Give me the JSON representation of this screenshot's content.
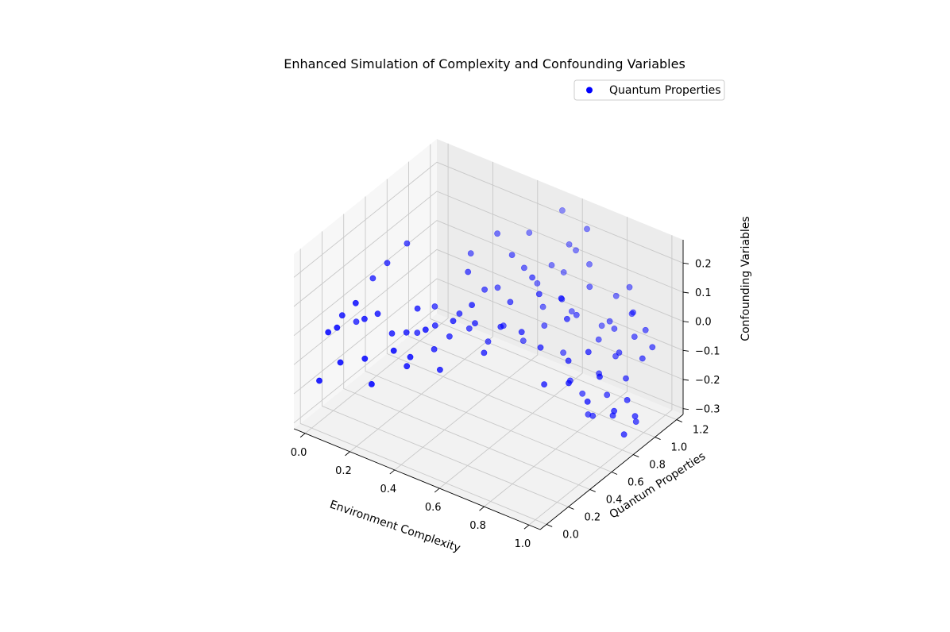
{
  "chart_data": {
    "type": "scatter",
    "title": "Enhanced Simulation of Complexity and Confounding Variables",
    "xlabel": "Environment Complexity",
    "ylabel": "Quantum Properties",
    "zlabel": "Confounding Variables",
    "x_ticks": [
      "0.0",
      "0.2",
      "0.4",
      "0.6",
      "0.8",
      "1.0"
    ],
    "y_ticks": [
      "0.0",
      "0.2",
      "0.4",
      "0.6",
      "0.8",
      "1.0",
      "1.2"
    ],
    "z_ticks": [
      "−0.3",
      "−0.2",
      "−0.1",
      "0.0",
      "0.1",
      "0.2"
    ],
    "xlim": [
      -0.05,
      1.05
    ],
    "ylim": [
      -0.06,
      1.26
    ],
    "zlim": [
      -0.32,
      0.28
    ],
    "grid": true,
    "legend_position": "top-right",
    "series": [
      {
        "name": "Quantum Properties",
        "color": "#0000ff",
        "marker": "circle",
        "points": [
          {
            "x": 0.02,
            "y": 0.03,
            "z": -0.16
          },
          {
            "x": 0.05,
            "y": 0.05,
            "z": 0.01
          },
          {
            "x": 0.07,
            "y": 0.09,
            "z": 0.02
          },
          {
            "x": 0.04,
            "y": 0.2,
            "z": 0.02
          },
          {
            "x": 0.09,
            "y": 0.08,
            "z": -0.09
          },
          {
            "x": 0.11,
            "y": 0.18,
            "z": 0.09
          },
          {
            "x": 0.13,
            "y": 0.22,
            "z": 0.03
          },
          {
            "x": 0.15,
            "y": 0.3,
            "z": 0.03
          },
          {
            "x": 0.17,
            "y": 0.14,
            "z": -0.07
          },
          {
            "x": 0.19,
            "y": 0.35,
            "z": -0.04
          },
          {
            "x": 0.22,
            "y": 0.1,
            "z": -0.13
          },
          {
            "x": 0.24,
            "y": 0.38,
            "z": -0.03
          },
          {
            "x": 0.27,
            "y": 0.42,
            "z": 0.05
          },
          {
            "x": 0.29,
            "y": 0.28,
            "z": -0.1
          },
          {
            "x": 0.31,
            "y": 0.5,
            "z": -0.02
          },
          {
            "x": 0.33,
            "y": 0.45,
            "z": -0.08
          },
          {
            "x": 0.35,
            "y": 0.55,
            "z": -0.06
          },
          {
            "x": 0.37,
            "y": 0.6,
            "z": 0.01
          },
          {
            "x": 0.36,
            "y": 0.7,
            "z": 0.12
          },
          {
            "x": 0.39,
            "y": 0.65,
            "z": -0.05
          },
          {
            "x": 0.41,
            "y": 0.75,
            "z": 0.06
          },
          {
            "x": 0.42,
            "y": 0.85,
            "z": 0.04
          },
          {
            "x": 0.44,
            "y": 0.72,
            "z": -0.1
          },
          {
            "x": 0.46,
            "y": 0.9,
            "z": 0.15
          },
          {
            "x": 0.47,
            "y": 0.8,
            "z": -0.06
          },
          {
            "x": 0.49,
            "y": 0.95,
            "z": 0.1
          },
          {
            "x": 0.5,
            "y": 1.05,
            "z": 0.02
          },
          {
            "x": 0.52,
            "y": 0.88,
            "z": -0.12
          },
          {
            "x": 0.54,
            "y": 1.1,
            "z": 0.08
          },
          {
            "x": 0.55,
            "y": 1.0,
            "z": -0.03
          },
          {
            "x": 0.57,
            "y": 1.15,
            "z": 0.05
          },
          {
            "x": 0.58,
            "y": 0.95,
            "z": -0.07
          },
          {
            "x": 0.6,
            "y": 1.2,
            "z": 0.12
          },
          {
            "x": 0.61,
            "y": 1.05,
            "z": 0.0
          },
          {
            "x": 0.63,
            "y": 1.1,
            "z": -0.05
          },
          {
            "x": 0.65,
            "y": 0.98,
            "z": -0.15
          },
          {
            "x": 0.67,
            "y": 1.18,
            "z": 0.1
          },
          {
            "x": 0.69,
            "y": 1.02,
            "z": -0.02
          },
          {
            "x": 0.7,
            "y": 1.12,
            "z": 0.05
          },
          {
            "x": 0.72,
            "y": 0.9,
            "z": -0.2
          },
          {
            "x": 0.74,
            "y": 1.15,
            "z": -0.08
          },
          {
            "x": 0.75,
            "y": 0.95,
            "z": -0.25
          },
          {
            "x": 0.76,
            "y": 1.08,
            "z": -0.1
          },
          {
            "x": 0.78,
            "y": 1.2,
            "z": 0.02
          },
          {
            "x": 0.79,
            "y": 0.92,
            "z": -0.3
          },
          {
            "x": 0.8,
            "y": 1.0,
            "z": -0.18
          },
          {
            "x": 0.82,
            "y": 1.1,
            "z": -0.05
          },
          {
            "x": 0.83,
            "y": 0.88,
            "z": -0.28
          },
          {
            "x": 0.85,
            "y": 1.05,
            "z": -0.12
          },
          {
            "x": 0.86,
            "y": 0.95,
            "z": -0.22
          },
          {
            "x": 0.88,
            "y": 1.15,
            "z": 0.01
          },
          {
            "x": 0.89,
            "y": 1.0,
            "z": -0.08
          },
          {
            "x": 0.91,
            "y": 0.9,
            "z": -0.26
          },
          {
            "x": 0.92,
            "y": 1.08,
            "z": -0.04
          },
          {
            "x": 0.93,
            "y": 0.98,
            "z": -0.15
          },
          {
            "x": 0.95,
            "y": 1.12,
            "z": -0.02
          },
          {
            "x": 0.96,
            "y": 0.93,
            "z": -0.2
          },
          {
            "x": 0.97,
            "y": 1.05,
            "z": -0.09
          },
          {
            "x": 0.98,
            "y": 0.97,
            "z": -0.28
          },
          {
            "x": 0.99,
            "y": 1.1,
            "z": -0.06
          },
          {
            "x": 0.9,
            "y": 0.8,
            "z": -0.1
          },
          {
            "x": 0.87,
            "y": 0.75,
            "z": -0.18
          },
          {
            "x": 0.84,
            "y": 0.82,
            "z": -0.04
          },
          {
            "x": 0.81,
            "y": 0.7,
            "z": -0.12
          },
          {
            "x": 0.77,
            "y": 0.78,
            "z": -0.08
          },
          {
            "x": 0.73,
            "y": 0.85,
            "z": 0.03
          },
          {
            "x": 0.71,
            "y": 0.68,
            "z": -0.15
          },
          {
            "x": 0.68,
            "y": 0.9,
            "z": 0.07
          },
          {
            "x": 0.66,
            "y": 0.75,
            "z": -0.06
          },
          {
            "x": 0.62,
            "y": 0.82,
            "z": 0.09
          },
          {
            "x": 0.59,
            "y": 0.72,
            "z": -0.02
          },
          {
            "x": 0.56,
            "y": 0.88,
            "z": 0.11
          },
          {
            "x": 0.53,
            "y": 0.65,
            "z": 0.0
          },
          {
            "x": 0.51,
            "y": 0.78,
            "z": 0.04
          },
          {
            "x": 0.48,
            "y": 0.6,
            "z": -0.09
          },
          {
            "x": 0.45,
            "y": 0.55,
            "z": 0.08
          },
          {
            "x": 0.43,
            "y": 0.62,
            "z": -0.01
          },
          {
            "x": 0.4,
            "y": 0.48,
            "z": 0.03
          },
          {
            "x": 0.38,
            "y": 0.4,
            "z": -0.12
          },
          {
            "x": 0.34,
            "y": 0.35,
            "z": 0.02
          },
          {
            "x": 0.32,
            "y": 0.25,
            "z": -0.05
          },
          {
            "x": 0.28,
            "y": 0.18,
            "z": -0.02
          },
          {
            "x": 0.26,
            "y": 0.6,
            "z": 0.0
          },
          {
            "x": 0.23,
            "y": 0.5,
            "z": -0.07
          },
          {
            "x": 0.94,
            "y": 0.85,
            "z": -0.22
          },
          {
            "x": 0.97,
            "y": 0.88,
            "z": -0.3
          },
          {
            "x": 1.0,
            "y": 0.92,
            "z": -0.24
          },
          {
            "x": 0.86,
            "y": 1.18,
            "z": -0.01
          },
          {
            "x": 0.83,
            "y": 1.22,
            "z": 0.06
          },
          {
            "x": 0.79,
            "y": 1.12,
            "z": -0.04
          },
          {
            "x": 0.64,
            "y": 1.22,
            "z": 0.2
          },
          {
            "x": 0.58,
            "y": 1.18,
            "z": 0.14
          },
          {
            "x": 0.52,
            "y": 1.24,
            "z": 0.22
          },
          {
            "x": 0.44,
            "y": 1.1,
            "z": 0.16
          },
          {
            "x": 0.37,
            "y": 0.95,
            "z": 0.18
          },
          {
            "x": 0.3,
            "y": 0.85,
            "z": 0.12
          },
          {
            "x": 0.16,
            "y": 0.55,
            "z": 0.2
          },
          {
            "x": 0.12,
            "y": 0.45,
            "z": 0.15
          },
          {
            "x": 0.08,
            "y": 0.4,
            "z": 0.1
          },
          {
            "x": 0.03,
            "y": 0.35,
            "z": -0.05
          }
        ]
      }
    ]
  }
}
